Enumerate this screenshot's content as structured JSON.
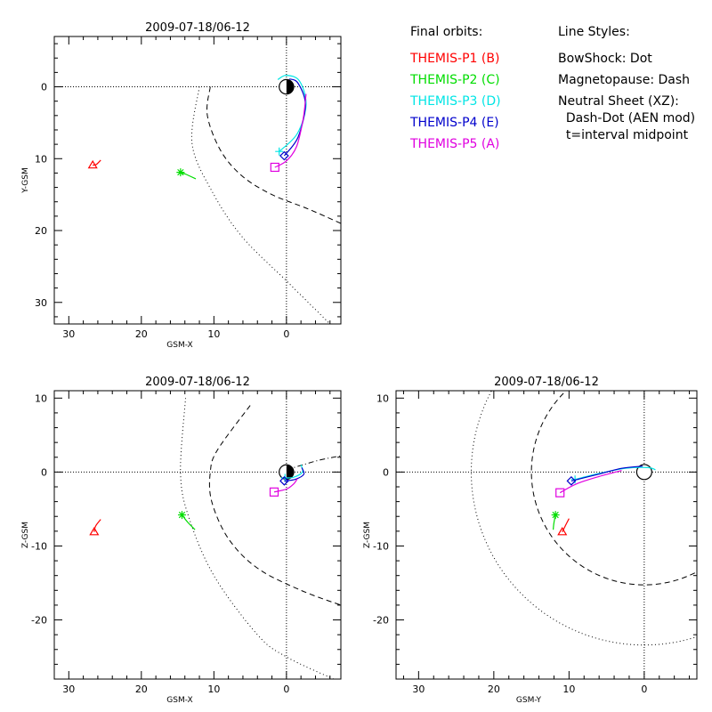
{
  "legend": {
    "orbits_heading": "Final orbits:",
    "orbits": [
      {
        "label": "THEMIS-P1 (B)",
        "color": "#ff0000"
      },
      {
        "label": "THEMIS-P2 (C)",
        "color": "#00dd00"
      },
      {
        "label": "THEMIS-P3 (D)",
        "color": "#00e5e5"
      },
      {
        "label": "THEMIS-P4 (E)",
        "color": "#0000cc"
      },
      {
        "label": "THEMIS-P5 (A)",
        "color": "#e000e0"
      }
    ],
    "styles_heading": "Line Styles:",
    "styles": [
      "BowShock: Dot",
      "Magnetopause: Dash",
      "Neutral Sheet (XZ):",
      "  Dash-Dot (AEN mod)",
      "  t=interval midpoint"
    ]
  },
  "chart_data": [
    {
      "id": "xy",
      "type": "line",
      "title": "2009-07-18/06-12",
      "xlabel": "GSM-X",
      "ylabel": "Y-GSM",
      "xlim": [
        32,
        -7.5
      ],
      "ylim": [
        -7,
        33
      ],
      "xticks": [
        30,
        20,
        10,
        0
      ],
      "yticks": [
        0,
        10,
        20,
        30
      ],
      "y_reversed": true,
      "bow_shock": [
        [
          12.0,
          0
        ],
        [
          13.0,
          8
        ],
        [
          10.0,
          15
        ],
        [
          6.0,
          21
        ],
        [
          0,
          27
        ],
        [
          -4.0,
          31
        ],
        [
          -6.0,
          33
        ]
      ],
      "magnetopause": [
        [
          10.5,
          0
        ],
        [
          10.9,
          4
        ],
        [
          9.0,
          9
        ],
        [
          6.0,
          12.5
        ],
        [
          2.0,
          15
        ],
        [
          -3.0,
          17
        ],
        [
          -7.5,
          19
        ]
      ],
      "series": [
        {
          "name": "THEMIS-P1 (B)",
          "color": "#ff0000",
          "symbol": "triangle",
          "points": [
            [
              26.7,
              10.9
            ],
            [
              26.2,
              10.8
            ],
            [
              25.6,
              10.2
            ]
          ]
        },
        {
          "name": "THEMIS-P2 (C)",
          "color": "#00dd00",
          "symbol": "asterisk",
          "points": [
            [
              14.6,
              11.9
            ],
            [
              13.8,
              12.2
            ],
            [
              12.5,
              12.8
            ]
          ]
        },
        {
          "name": "THEMIS-P3 (D)",
          "color": "#00e5e5",
          "symbol": "plus",
          "points": [
            [
              1.0,
              9.0
            ],
            [
              -1.5,
              6.5
            ],
            [
              -2.7,
              2.5
            ],
            [
              -1.8,
              -0.8
            ],
            [
              0,
              -1.6
            ],
            [
              1.2,
              -1.0
            ]
          ]
        },
        {
          "name": "THEMIS-P4 (E)",
          "color": "#0000cc",
          "symbol": "diamond",
          "points": [
            [
              0.3,
              9.6
            ],
            [
              -1.6,
              7.0
            ],
            [
              -2.6,
              2.5
            ],
            [
              -1.6,
              -0.5
            ],
            [
              -0.4,
              -1.1
            ]
          ]
        },
        {
          "name": "THEMIS-P5 (A)",
          "color": "#e000e0",
          "symbol": "square",
          "points": [
            [
              1.6,
              11.2
            ],
            [
              0,
              10.3
            ],
            [
              -1.4,
              8.3
            ],
            [
              -2.3,
              4.5
            ],
            [
              -2.7,
              1.0
            ]
          ]
        }
      ]
    },
    {
      "id": "xz",
      "type": "line",
      "title": "2009-07-18/06-12",
      "xlabel": "GSM-X",
      "ylabel": "Z-GSM",
      "xlim": [
        32,
        -7.5
      ],
      "ylim": [
        -28,
        11
      ],
      "xticks": [
        30,
        20,
        10,
        0
      ],
      "yticks": [
        10,
        0,
        -10,
        -20
      ],
      "y_reversed": false,
      "bow_shock": [
        [
          13.9,
          10
        ],
        [
          14.6,
          0
        ],
        [
          13.5,
          -6
        ],
        [
          10.0,
          -14
        ],
        [
          4.0,
          -22
        ],
        [
          0,
          -25
        ],
        [
          -6.5,
          -28
        ]
      ],
      "magnetopause": [
        [
          5.0,
          9
        ],
        [
          9.5,
          3
        ],
        [
          10.5,
          0
        ],
        [
          10.3,
          -4
        ],
        [
          8.0,
          -9
        ],
        [
          4.0,
          -13
        ],
        [
          -2.0,
          -16
        ],
        [
          -7.5,
          -18
        ]
      ],
      "neutral_sheet": [
        [
          0,
          0.3
        ],
        [
          -2.0,
          0.9
        ],
        [
          -4.5,
          1.6
        ],
        [
          -7.5,
          2.2
        ]
      ],
      "series": [
        {
          "name": "THEMIS-P1 (B)",
          "color": "#ff0000",
          "symbol": "triangle",
          "points": [
            [
              26.5,
              -8.1
            ],
            [
              26.3,
              -7.3
            ],
            [
              25.6,
              -6.4
            ]
          ]
        },
        {
          "name": "THEMIS-P2 (C)",
          "color": "#00dd00",
          "symbol": "asterisk",
          "points": [
            [
              14.4,
              -5.8
            ],
            [
              13.6,
              -6.8
            ],
            [
              12.6,
              -7.8
            ]
          ]
        },
        {
          "name": "THEMIS-P3 (D)",
          "color": "#00e5e5",
          "symbol": "plus",
          "points": [
            [
              0.2,
              -0.8
            ],
            [
              -1.0,
              -0.7
            ],
            [
              -2.2,
              0.0
            ],
            [
              -2.0,
              1.0
            ]
          ]
        },
        {
          "name": "THEMIS-P4 (E)",
          "color": "#0000cc",
          "symbol": "diamond",
          "points": [
            [
              0.3,
              -1.2
            ],
            [
              -1.2,
              -1.0
            ],
            [
              -2.4,
              -0.3
            ],
            [
              -2.1,
              0.6
            ]
          ]
        },
        {
          "name": "THEMIS-P5 (A)",
          "color": "#e000e0",
          "symbol": "square",
          "points": [
            [
              1.7,
              -2.7
            ],
            [
              0,
              -2.3
            ],
            [
              -1.0,
              -1.6
            ],
            [
              -1.5,
              -0.9
            ]
          ]
        }
      ]
    },
    {
      "id": "yz",
      "type": "line",
      "title": "2009-07-18/06-12",
      "xlabel": "GSM-Y",
      "ylabel": "Z-GSM",
      "xlim": [
        33,
        -7
      ],
      "ylim": [
        -28,
        11
      ],
      "xticks": [
        30,
        20,
        10,
        0
      ],
      "yticks": [
        10,
        0,
        -10,
        -20
      ],
      "y_reversed": false,
      "bow_shock_radius": 23,
      "magnetopause_radius": 15,
      "series": [
        {
          "name": "THEMIS-P1 (B)",
          "color": "#ff0000",
          "symbol": "triangle",
          "points": [
            [
              10.9,
              -8.1
            ],
            [
              10.5,
              -7.3
            ],
            [
              10.0,
              -6.3
            ]
          ]
        },
        {
          "name": "THEMIS-P2 (C)",
          "color": "#00dd00",
          "symbol": "asterisk",
          "points": [
            [
              11.8,
              -5.8
            ],
            [
              12.0,
              -6.8
            ],
            [
              12.1,
              -7.8
            ]
          ]
        },
        {
          "name": "THEMIS-P3 (D)",
          "color": "#00e5e5",
          "symbol": "plus",
          "points": [
            [
              9.2,
              -1.0
            ],
            [
              6.0,
              -0.2
            ],
            [
              2.5,
              0.5
            ],
            [
              -0.5,
              0.6
            ],
            [
              -1.5,
              0.3
            ]
          ]
        },
        {
          "name": "THEMIS-P4 (E)",
          "color": "#0000cc",
          "symbol": "diamond",
          "points": [
            [
              9.7,
              -1.2
            ],
            [
              6.5,
              -0.4
            ],
            [
              3.0,
              0.5
            ],
            [
              0.2,
              0.8
            ]
          ]
        },
        {
          "name": "THEMIS-P5 (A)",
          "color": "#e000e0",
          "symbol": "square",
          "points": [
            [
              11.2,
              -2.8
            ],
            [
              9.0,
              -1.6
            ],
            [
              6.0,
              -0.6
            ],
            [
              3.0,
              0.2
            ]
          ]
        }
      ]
    }
  ]
}
